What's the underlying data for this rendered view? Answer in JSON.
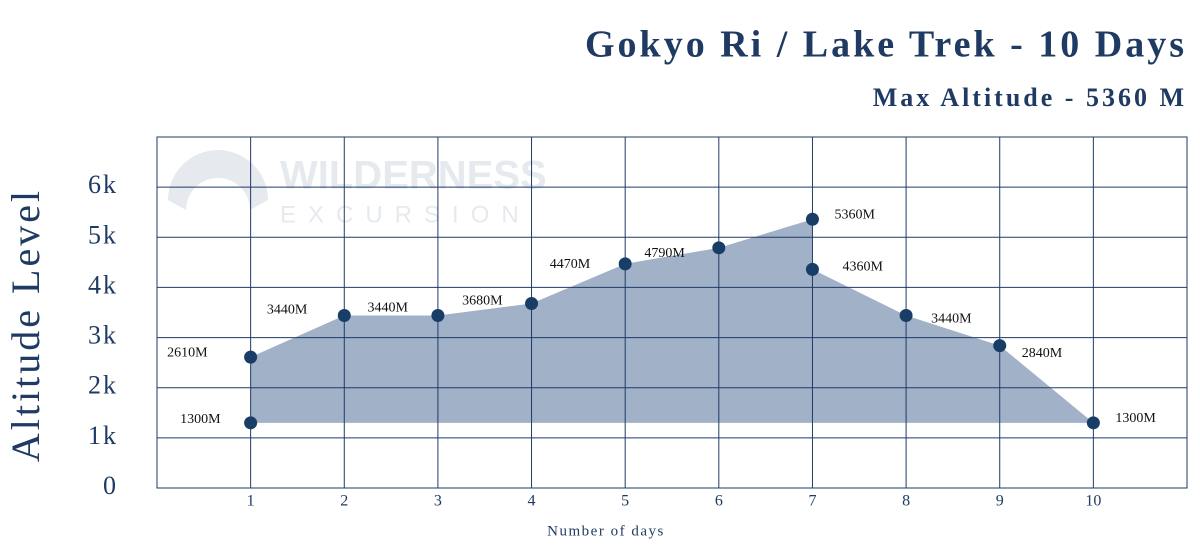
{
  "chart_data": {
    "type": "area",
    "title": "Gokyo Ri / Lake Trek - 10 Days",
    "subtitle": "Max Altitude - 5360 M",
    "ylabel": "Altitude Level",
    "xlabel": "Number of days",
    "watermark": [
      "WILDERNESS",
      "EXCURSION"
    ],
    "x": [
      1,
      1,
      2,
      3,
      4,
      5,
      6,
      7,
      7,
      8,
      9,
      10
    ],
    "values": [
      1300,
      2610,
      3440,
      3440,
      3680,
      4470,
      4790,
      5360,
      4360,
      3440,
      2840,
      1300
    ],
    "value_labels": [
      "1300M",
      "2610M",
      "3440M",
      "3440M",
      "3680M",
      "4470M",
      "4790M",
      "5360M",
      "4360M",
      "3440M",
      "2840M",
      "1300M"
    ],
    "fill": "#a1b1c7",
    "color": "#183d66",
    "xlim": [
      0,
      11
    ],
    "xticks": [
      1,
      2,
      3,
      4,
      5,
      6,
      7,
      8,
      9,
      10
    ],
    "ylim": [
      0,
      7000
    ],
    "yticks": [
      0,
      {
        "value": 1000,
        "label": "1k"
      },
      {
        "value": 2000,
        "label": "2k"
      },
      {
        "value": 3000,
        "label": "3k"
      },
      {
        "value": 4000,
        "label": "4k"
      },
      {
        "value": 5000,
        "label": "5k"
      },
      {
        "value": 6000,
        "label": "6k"
      }
    ],
    "grid": true
  }
}
